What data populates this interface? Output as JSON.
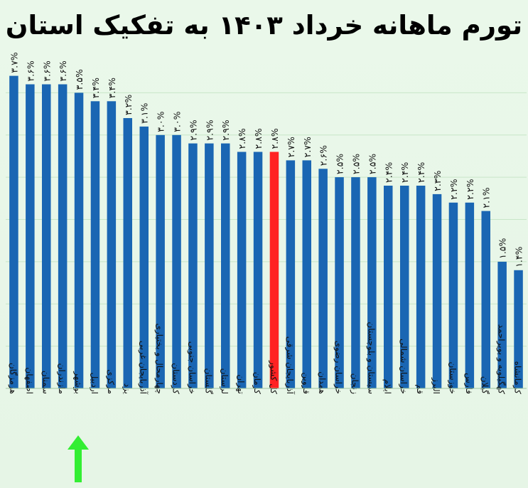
{
  "title": "تورم ماهانه خرداد ۱۴۰۳ به تفکیک استان",
  "highlight": {
    "category": "بوشهر",
    "arrow_color": "#33ee33"
  },
  "colors": {
    "bar": "#1a66b3",
    "highlight_bar": "#ff2222",
    "background": "#e9f7e9",
    "grid": "#c7e6c7"
  },
  "chart_data": {
    "type": "bar",
    "title": "تورم ماهانه خرداد ۱۴۰۳ به تفکیک استان",
    "xlabel": "",
    "ylabel": "",
    "ylim": [
      0,
      4.0
    ],
    "grid": true,
    "categories": [
      "هرمزگان",
      "اصفهان",
      "سمنان",
      "مازندران",
      "بوشهر",
      "اردبیل",
      "مرکزی",
      "یزد",
      "آذربایجان غربی",
      "چهارمحال و بختیاری",
      "کردستان",
      "خراسان جنوبی",
      "گلستان",
      "لرستان",
      "تهران",
      "کرمان",
      "کل کشور",
      "آذربایجان شرقی",
      "قزوین",
      "همدان",
      "خراسان رضوی",
      "زنجان",
      "سیستان و بلوچستان",
      "ایلام",
      "خراسان شمالی",
      "قم",
      "البرز",
      "خوزستان",
      "فارس",
      "گیلان",
      "کهگیلویه و بویراحمد",
      "کرمانشاه"
    ],
    "values": [
      3.7,
      3.6,
      3.6,
      3.6,
      3.5,
      3.4,
      3.4,
      3.2,
      3.1,
      3.0,
      3.0,
      2.9,
      2.9,
      2.9,
      2.8,
      2.8,
      2.8,
      2.7,
      2.7,
      2.6,
      2.5,
      2.5,
      2.5,
      2.4,
      2.4,
      2.4,
      2.3,
      2.2,
      2.2,
      2.1,
      1.5,
      1.4
    ],
    "labels": [
      "۳.۷%",
      "۳.۶%",
      "۳.۶%",
      "۳.۶%",
      "۳.۵%",
      "۳.۴%",
      "۳.۴%",
      "۳.۲%",
      "۳.۱%",
      "۳.۰%",
      "۳.۰%",
      "۲.۹%",
      "۲.۹%",
      "۲.۹%",
      "۲.۸%",
      "۲.۸%",
      "۲.۸%",
      "۲.۷%",
      "۲.۷%",
      "۲.۶%",
      "۲.۵%",
      "۲.۵%",
      "۲.۵%",
      "۲.۴%",
      "۲.۴%",
      "۲.۴%",
      "۲.۳%",
      "۲.۲%",
      "۲.۲%",
      "۲.۱%",
      "۱.۵%",
      "۱.۴%"
    ],
    "highlight_index": 16
  }
}
